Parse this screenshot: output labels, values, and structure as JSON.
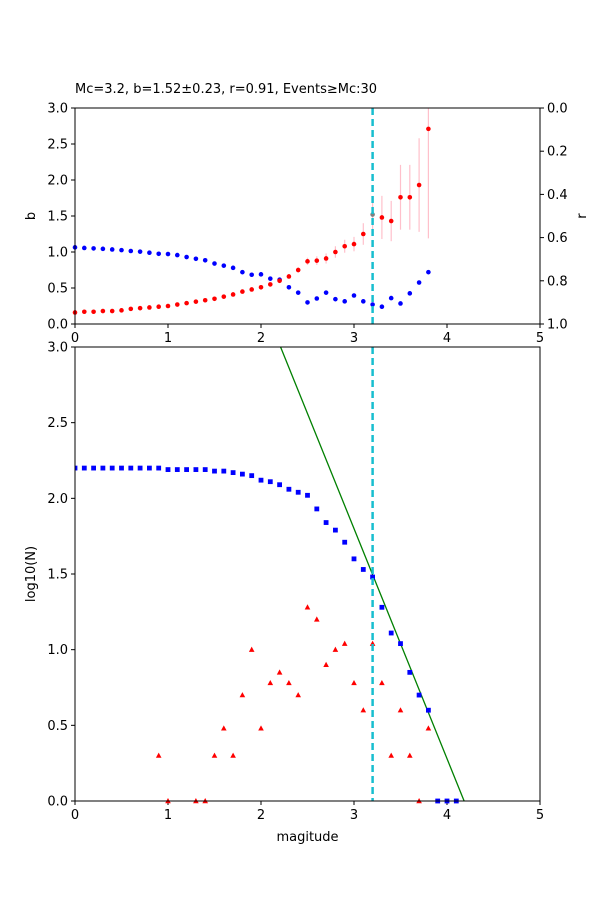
{
  "chart_data": [
    {
      "type": "scatter",
      "title": "Mc=3.2, b=1.52±0.23, r=0.91, Events≥Mc:30",
      "xlabel": "",
      "ylabel": "b",
      "y2label": "r",
      "xlim": [
        0,
        5
      ],
      "ylim": [
        0,
        3
      ],
      "y2lim": [
        1.0,
        0.0
      ],
      "y2_inverted": true,
      "xticks": [
        "0",
        "1",
        "2",
        "3",
        "4",
        "5"
      ],
      "yticks": [
        "0.0",
        "0.5",
        "1.0",
        "1.5",
        "2.0",
        "2.5",
        "3.0"
      ],
      "y2ticks": [
        "0.0",
        "0.2",
        "0.4",
        "0.6",
        "0.8",
        "1.0"
      ],
      "mc_line": 3.2,
      "colors": {
        "b": "#ff0000",
        "r": "#0000ff",
        "err": "#ffc0cb",
        "mc": "#17becf"
      },
      "series": [
        {
          "name": "b",
          "axis": "left",
          "x": [
            0.0,
            0.1,
            0.2,
            0.3,
            0.4,
            0.5,
            0.6,
            0.7,
            0.8,
            0.9,
            1.0,
            1.1,
            1.2,
            1.3,
            1.4,
            1.5,
            1.6,
            1.7,
            1.8,
            1.9,
            2.0,
            2.1,
            2.2,
            2.3,
            2.4,
            2.5,
            2.6,
            2.7,
            2.8,
            2.9,
            3.0,
            3.1,
            3.2,
            3.3,
            3.4,
            3.5,
            3.6,
            3.7,
            3.8
          ],
          "y": [
            0.16,
            0.17,
            0.17,
            0.18,
            0.18,
            0.19,
            0.21,
            0.22,
            0.23,
            0.24,
            0.25,
            0.27,
            0.29,
            0.31,
            0.33,
            0.35,
            0.38,
            0.41,
            0.45,
            0.48,
            0.51,
            0.55,
            0.6,
            0.66,
            0.75,
            0.87,
            0.88,
            0.91,
            1.0,
            1.08,
            1.11,
            1.25,
            1.52,
            1.48,
            1.43,
            1.76,
            1.76,
            1.93,
            2.71
          ],
          "err": [
            0.01,
            0.01,
            0.01,
            0.01,
            0.01,
            0.01,
            0.01,
            0.01,
            0.01,
            0.01,
            0.01,
            0.01,
            0.01,
            0.01,
            0.01,
            0.01,
            0.02,
            0.02,
            0.02,
            0.02,
            0.02,
            0.02,
            0.03,
            0.03,
            0.04,
            0.05,
            0.06,
            0.07,
            0.08,
            0.09,
            0.1,
            0.15,
            0.23,
            0.3,
            0.28,
            0.45,
            0.45,
            0.65,
            1.52
          ]
        },
        {
          "name": "r",
          "axis": "right",
          "x": [
            0.0,
            0.1,
            0.2,
            0.3,
            0.4,
            0.5,
            0.6,
            0.7,
            0.8,
            0.9,
            1.0,
            1.1,
            1.2,
            1.3,
            1.4,
            1.5,
            1.6,
            1.7,
            1.8,
            1.9,
            2.0,
            2.1,
            2.2,
            2.3,
            2.4,
            2.5,
            2.6,
            2.7,
            2.8,
            2.9,
            3.0,
            3.1,
            3.2,
            3.3,
            3.4,
            3.5,
            3.6,
            3.7,
            3.8
          ],
          "y": [
            0.645,
            0.648,
            0.65,
            0.652,
            0.655,
            0.658,
            0.662,
            0.665,
            0.67,
            0.675,
            0.676,
            0.681,
            0.69,
            0.698,
            0.705,
            0.72,
            0.73,
            0.74,
            0.76,
            0.772,
            0.77,
            0.79,
            0.795,
            0.83,
            0.855,
            0.9,
            0.882,
            0.855,
            0.885,
            0.895,
            0.868,
            0.895,
            0.91,
            0.92,
            0.88,
            0.905,
            0.858,
            0.808,
            0.76
          ]
        }
      ]
    },
    {
      "type": "scatter",
      "title": "",
      "xlabel": "magitude",
      "ylabel": "log10(N)",
      "xlim": [
        0,
        5
      ],
      "ylim": [
        0,
        3
      ],
      "xticks": [
        "0",
        "1",
        "2",
        "3",
        "4",
        "5"
      ],
      "yticks": [
        "0.0",
        "0.5",
        "1.0",
        "1.5",
        "2.0",
        "2.5",
        "3.0"
      ],
      "mc_line": 3.2,
      "fit_line": {
        "a": 6.36,
        "b": 1.52,
        "color": "#008000"
      },
      "colors": {
        "cumulative": "#0000ff",
        "noncumulative": "#ff0000",
        "mc": "#17becf"
      },
      "series": [
        {
          "name": "cumulative",
          "marker": "square",
          "x": [
            0.0,
            0.1,
            0.2,
            0.3,
            0.4,
            0.5,
            0.6,
            0.7,
            0.8,
            0.9,
            1.0,
            1.1,
            1.2,
            1.3,
            1.4,
            1.5,
            1.6,
            1.7,
            1.8,
            1.9,
            2.0,
            2.1,
            2.2,
            2.3,
            2.4,
            2.5,
            2.6,
            2.7,
            2.8,
            2.9,
            3.0,
            3.1,
            3.2,
            3.3,
            3.4,
            3.5,
            3.6,
            3.7,
            3.8,
            3.9,
            4.0,
            4.1
          ],
          "y": [
            2.2,
            2.2,
            2.2,
            2.2,
            2.2,
            2.2,
            2.2,
            2.2,
            2.2,
            2.2,
            2.19,
            2.19,
            2.19,
            2.19,
            2.19,
            2.18,
            2.18,
            2.17,
            2.16,
            2.15,
            2.12,
            2.11,
            2.09,
            2.06,
            2.04,
            2.02,
            1.93,
            1.84,
            1.79,
            1.71,
            1.6,
            1.53,
            1.48,
            1.28,
            1.11,
            1.04,
            0.85,
            0.7,
            0.6,
            0.0,
            0.0,
            0.0
          ]
        },
        {
          "name": "noncumulative",
          "marker": "triangle",
          "x": [
            0.9,
            1.0,
            1.3,
            1.4,
            1.5,
            1.6,
            1.7,
            1.8,
            1.9,
            2.0,
            2.1,
            2.2,
            2.3,
            2.4,
            2.5,
            2.6,
            2.7,
            2.8,
            2.9,
            3.0,
            3.1,
            3.2,
            3.3,
            3.4,
            3.5,
            3.6,
            3.7,
            3.8
          ],
          "y": [
            0.3,
            0.0,
            0.0,
            0.0,
            0.3,
            0.48,
            0.3,
            0.7,
            1.0,
            0.48,
            0.78,
            0.85,
            0.78,
            0.7,
            1.28,
            1.2,
            0.9,
            1.0,
            1.04,
            0.78,
            0.6,
            1.04,
            0.78,
            0.3,
            0.6,
            0.3,
            0.0,
            0.48
          ]
        }
      ]
    }
  ]
}
